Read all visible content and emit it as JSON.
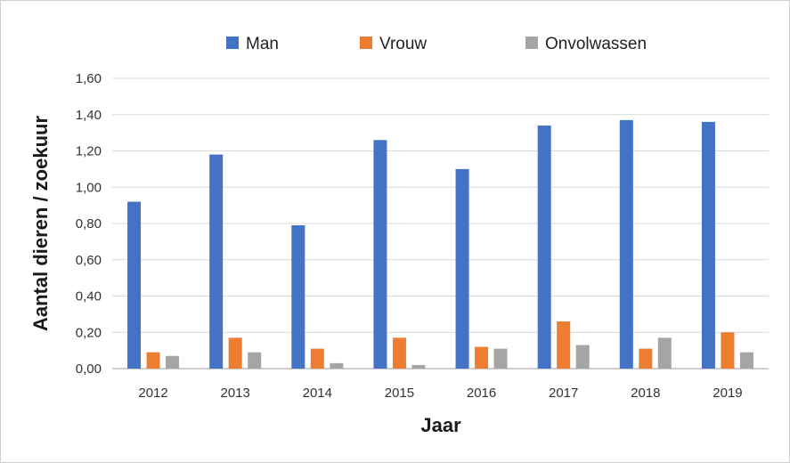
{
  "chart_data": {
    "type": "bar",
    "title": "",
    "xlabel": "Jaar",
    "ylabel": "Aantal dieren / zoekuur",
    "categories": [
      "2012",
      "2013",
      "2014",
      "2015",
      "2016",
      "2017",
      "2018",
      "2019"
    ],
    "series": [
      {
        "name": "Man",
        "color": "#4472c4",
        "values": [
          0.92,
          1.18,
          0.79,
          1.26,
          1.1,
          1.34,
          1.37,
          1.36
        ]
      },
      {
        "name": "Vrouw",
        "color": "#ed7d31",
        "values": [
          0.09,
          0.17,
          0.11,
          0.17,
          0.12,
          0.26,
          0.11,
          0.2
        ]
      },
      {
        "name": "Onvolwassen",
        "color": "#a5a5a5",
        "values": [
          0.07,
          0.09,
          0.03,
          0.02,
          0.11,
          0.13,
          0.17,
          0.09
        ]
      }
    ],
    "ylim": [
      0,
      1.6
    ],
    "yticks": [
      "0,00",
      "0,20",
      "0,40",
      "0,60",
      "0,80",
      "1,00",
      "1,20",
      "1,40",
      "1,60"
    ],
    "grid": true,
    "legend_position": "top"
  }
}
